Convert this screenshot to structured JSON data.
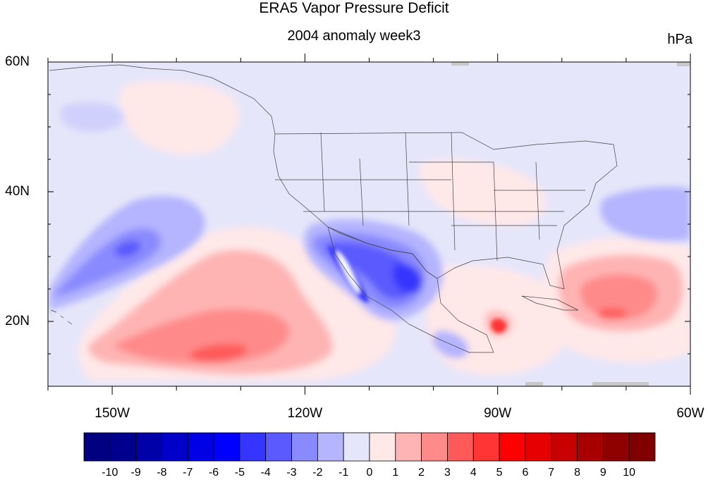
{
  "title": "ERA5 Vapor Pressure Deficit",
  "subtitle": "2004 anomaly week3",
  "units": "hPa",
  "map": {
    "lon_range": [
      -160,
      -60
    ],
    "lat_range": [
      10,
      60
    ],
    "lat_ticks": [
      {
        "value": 60,
        "label": "60N"
      },
      {
        "value": 40,
        "label": "40N"
      },
      {
        "value": 20,
        "label": "20N"
      }
    ],
    "lon_ticks": [
      {
        "value": -150,
        "label": "150W"
      },
      {
        "value": -120,
        "label": "120W"
      },
      {
        "value": -90,
        "label": "90W"
      },
      {
        "value": -60,
        "label": "60W"
      }
    ],
    "background_color": "#e6e6fa"
  },
  "colorbar": {
    "labels": [
      "-10",
      "-9",
      "-8",
      "-7",
      "-6",
      "-5",
      "-4",
      "-3",
      "-2",
      "-1",
      "0",
      "1",
      "2",
      "3",
      "4",
      "5",
      "6",
      "7",
      "8",
      "9",
      "10"
    ],
    "colors": [
      "#000080",
      "#00008f",
      "#0000a8",
      "#0000c8",
      "#0000e6",
      "#0000ff",
      "#3535ff",
      "#5a5aff",
      "#8a8aff",
      "#b4b4ff",
      "#e6e6fa",
      "#ffe8e8",
      "#ffb4b4",
      "#ff8a8a",
      "#ff5a5a",
      "#ff3535",
      "#ff0000",
      "#e60000",
      "#c80000",
      "#a80000",
      "#8f0000",
      "#800000"
    ]
  }
}
